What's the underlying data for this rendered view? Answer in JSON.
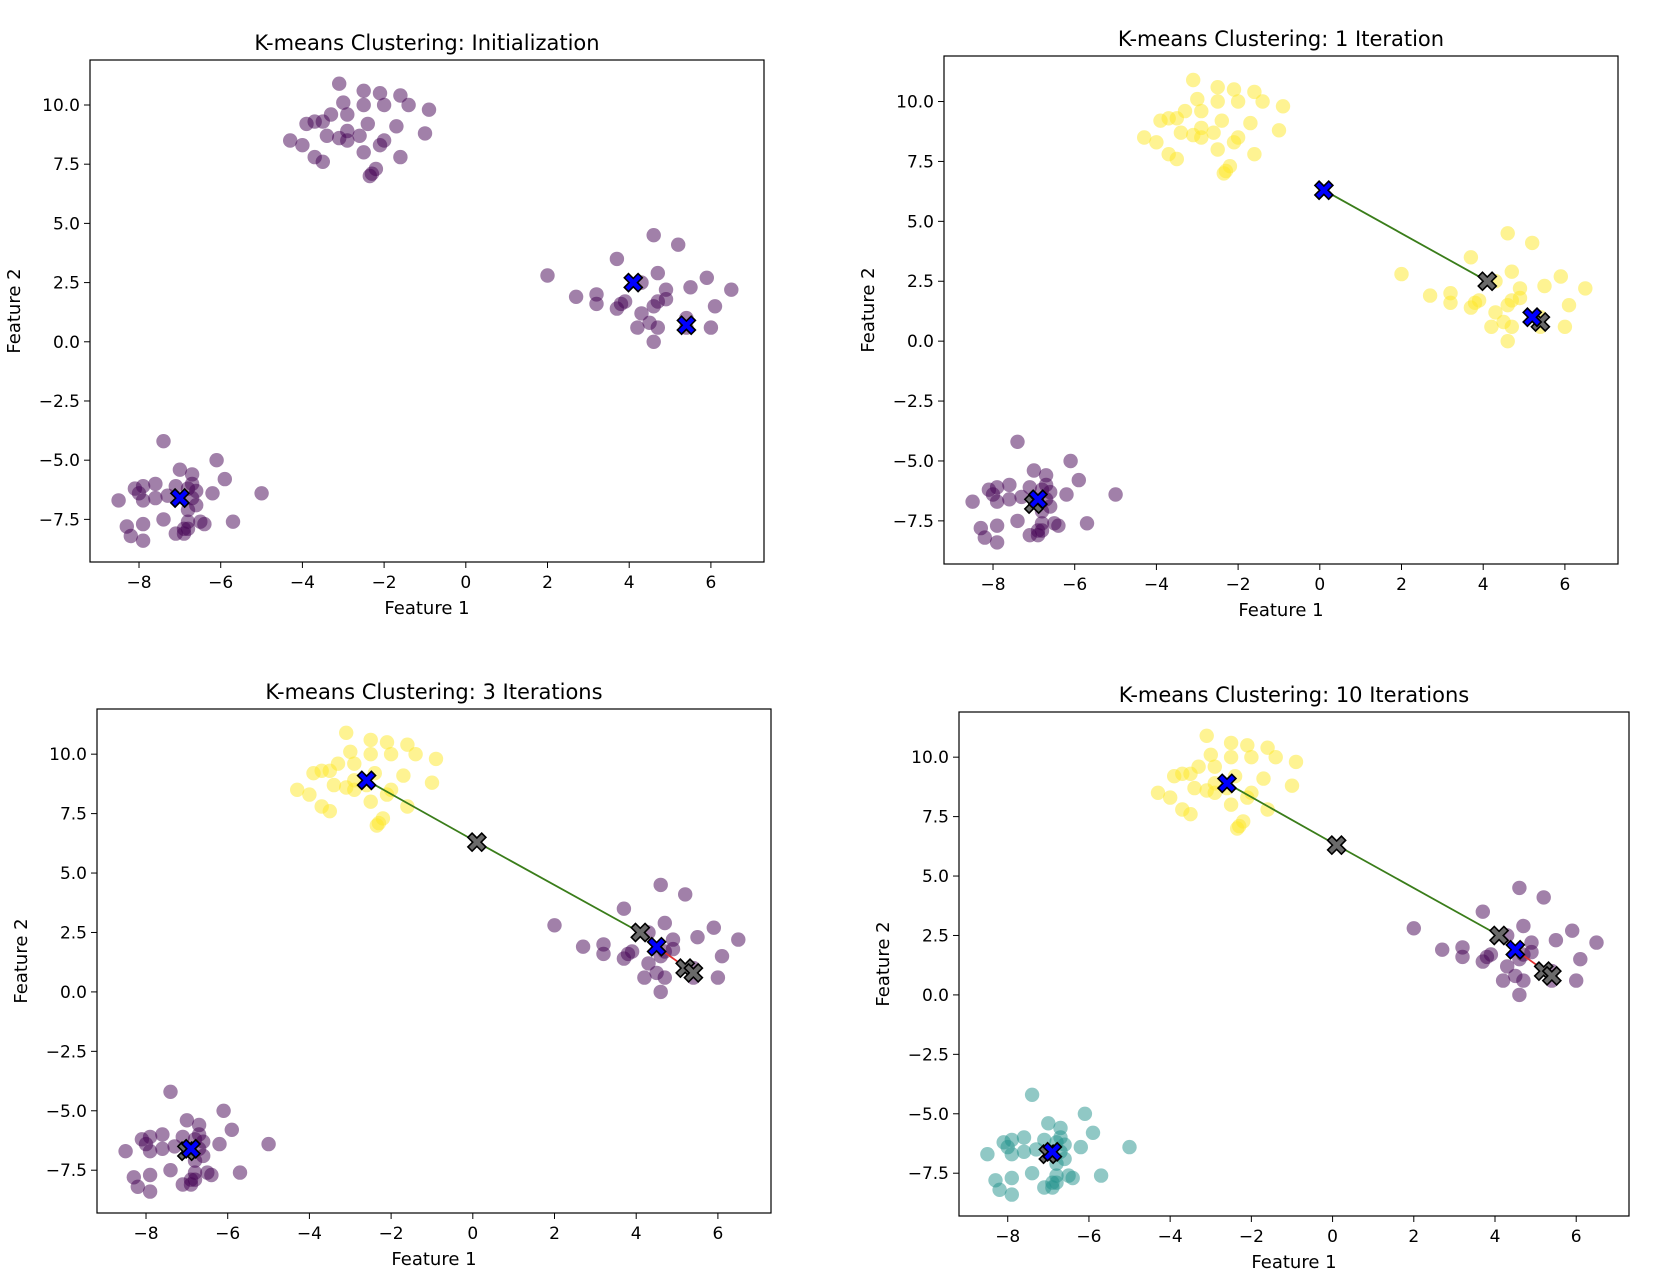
{
  "colors": {
    "purple": "#440154",
    "teal": "#21918c",
    "yellow": "#fde725",
    "centroid": "#0000ff",
    "old_centroid": "#6a6a6a",
    "path_green": "#3a7d1a",
    "path_red": "#e03030"
  },
  "chart_data": [
    {
      "type": "scatter",
      "title": "K-means Clustering: Initialization",
      "xlabel": "Feature 1",
      "ylabel": "Feature 2",
      "xlim": [
        -9.2,
        7.3
      ],
      "ylim": [
        -9.3,
        11.9
      ],
      "xticks": [
        -8,
        -6,
        -4,
        -2,
        0,
        2,
        4,
        6
      ],
      "yticks": [
        -7.5,
        -5.0,
        -2.5,
        0.0,
        2.5,
        5.0,
        7.5,
        10.0
      ],
      "xtick_labels": [
        "−8",
        "−6",
        "−4",
        "−2",
        "0",
        "2",
        "4",
        "6"
      ],
      "ytick_labels": [
        "−7.5",
        "−5.0",
        "−2.5",
        "0.0",
        "2.5",
        "5.0",
        "7.5",
        "10.0"
      ],
      "point_colors": {
        "A": "purple",
        "B": "purple",
        "C": "purple"
      },
      "centroids": [
        [
          -7.0,
          -6.6
        ],
        [
          4.1,
          2.5
        ],
        [
          5.4,
          0.7
        ]
      ],
      "previous_centroids": [],
      "paths": []
    },
    {
      "type": "scatter",
      "title": "K-means Clustering: 1 Iteration",
      "xlabel": "Feature 1",
      "ylabel": "Feature 2",
      "xlim": [
        -9.2,
        7.3
      ],
      "ylim": [
        -9.3,
        11.9
      ],
      "xticks": [
        -8,
        -6,
        -4,
        -2,
        0,
        2,
        4,
        6
      ],
      "yticks": [
        -7.5,
        -5.0,
        -2.5,
        0.0,
        2.5,
        5.0,
        7.5,
        10.0
      ],
      "xtick_labels": [
        "−8",
        "−6",
        "−4",
        "−2",
        "0",
        "2",
        "4",
        "6"
      ],
      "ytick_labels": [
        "−7.5",
        "−5.0",
        "−2.5",
        "0.0",
        "2.5",
        "5.0",
        "7.5",
        "10.0"
      ],
      "point_colors": {
        "A": "yellow",
        "B": "yellow",
        "C": "purple"
      },
      "centroids": [
        [
          -6.9,
          -6.6
        ],
        [
          0.1,
          6.3
        ],
        [
          5.2,
          1.0
        ]
      ],
      "previous_centroids": [
        [
          -7.0,
          -6.8
        ],
        [
          4.1,
          2.5
        ],
        [
          5.4,
          0.8
        ]
      ],
      "paths": [
        {
          "from": [
            0.1,
            6.3
          ],
          "to": [
            4.1,
            2.5
          ],
          "color": "path_green"
        },
        {
          "from": [
            5.2,
            1.0
          ],
          "to": [
            5.4,
            0.8
          ],
          "color": "path_red"
        }
      ]
    },
    {
      "type": "scatter",
      "title": "K-means Clustering: 3 Iterations",
      "xlabel": "Feature 1",
      "ylabel": "Feature 2",
      "xlim": [
        -9.2,
        7.3
      ],
      "ylim": [
        -9.3,
        11.9
      ],
      "xticks": [
        -8,
        -6,
        -4,
        -2,
        0,
        2,
        4,
        6
      ],
      "yticks": [
        -7.5,
        -5.0,
        -2.5,
        0.0,
        2.5,
        5.0,
        7.5,
        10.0
      ],
      "xtick_labels": [
        "−8",
        "−6",
        "−4",
        "−2",
        "0",
        "2",
        "4",
        "6"
      ],
      "ytick_labels": [
        "−7.5",
        "−5.0",
        "−2.5",
        "0.0",
        "2.5",
        "5.0",
        "7.5",
        "10.0"
      ],
      "point_colors": {
        "A": "yellow",
        "B": "purple",
        "C": "purple"
      },
      "centroids": [
        [
          -6.9,
          -6.6
        ],
        [
          -2.6,
          8.9
        ],
        [
          4.5,
          1.9
        ]
      ],
      "previous_centroids": [
        [
          -7.0,
          -6.7
        ],
        [
          0.1,
          6.3
        ],
        [
          4.1,
          2.5
        ],
        [
          5.2,
          1.0
        ],
        [
          5.4,
          0.8
        ]
      ],
      "paths": [
        {
          "from": [
            -2.6,
            8.9
          ],
          "to": [
            0.1,
            6.3
          ],
          "color": "path_green"
        },
        {
          "from": [
            0.1,
            6.3
          ],
          "to": [
            4.1,
            2.5
          ],
          "color": "path_green"
        },
        {
          "from": [
            4.5,
            1.9
          ],
          "to": [
            5.4,
            0.8
          ],
          "color": "path_red"
        }
      ]
    },
    {
      "type": "scatter",
      "title": "K-means Clustering: 10 Iterations",
      "xlabel": "Feature 1",
      "ylabel": "Feature 2",
      "xlim": [
        -9.2,
        7.3
      ],
      "ylim": [
        -9.3,
        11.9
      ],
      "xticks": [
        -8,
        -6,
        -4,
        -2,
        0,
        2,
        4,
        6
      ],
      "yticks": [
        -7.5,
        -5.0,
        -2.5,
        0.0,
        2.5,
        5.0,
        7.5,
        10.0
      ],
      "xtick_labels": [
        "−8",
        "−6",
        "−4",
        "−2",
        "0",
        "2",
        "4",
        "6"
      ],
      "ytick_labels": [
        "−7.5",
        "−5.0",
        "−2.5",
        "0.0",
        "2.5",
        "5.0",
        "7.5",
        "10.0"
      ],
      "point_colors": {
        "A": "yellow",
        "B": "purple",
        "C": "teal"
      },
      "centroids": [
        [
          -6.9,
          -6.6
        ],
        [
          -2.6,
          8.9
        ],
        [
          4.5,
          1.9
        ]
      ],
      "previous_centroids": [
        [
          -7.0,
          -6.7
        ],
        [
          0.1,
          6.3
        ],
        [
          4.1,
          2.5
        ],
        [
          5.2,
          1.0
        ],
        [
          5.4,
          0.8
        ]
      ],
      "paths": [
        {
          "from": [
            -2.6,
            8.9
          ],
          "to": [
            0.1,
            6.3
          ],
          "color": "path_green"
        },
        {
          "from": [
            0.1,
            6.3
          ],
          "to": [
            4.1,
            2.5
          ],
          "color": "path_green"
        },
        {
          "from": [
            4.5,
            1.9
          ],
          "to": [
            5.4,
            0.8
          ],
          "color": "path_red"
        }
      ]
    }
  ],
  "clusters": {
    "A": [
      [
        -3.1,
        10.9
      ],
      [
        -2.5,
        10.6
      ],
      [
        -2.1,
        10.5
      ],
      [
        -1.6,
        10.4
      ],
      [
        -3.0,
        10.1
      ],
      [
        -2.5,
        10.0
      ],
      [
        -2.0,
        10.0
      ],
      [
        -1.4,
        10.0
      ],
      [
        -0.9,
        9.8
      ],
      [
        -3.3,
        9.6
      ],
      [
        -2.9,
        9.6
      ],
      [
        -3.7,
        9.3
      ],
      [
        -3.5,
        9.3
      ],
      [
        -2.4,
        9.2
      ],
      [
        -3.9,
        9.2
      ],
      [
        -1.7,
        9.1
      ],
      [
        -2.9,
        8.9
      ],
      [
        -3.4,
        8.7
      ],
      [
        -3.1,
        8.6
      ],
      [
        -2.6,
        8.7
      ],
      [
        -2.9,
        8.5
      ],
      [
        -2.0,
        8.5
      ],
      [
        -1.0,
        8.8
      ],
      [
        -4.3,
        8.5
      ],
      [
        -4.0,
        8.3
      ],
      [
        -2.1,
        8.3
      ],
      [
        -1.6,
        7.8
      ],
      [
        -3.7,
        7.8
      ],
      [
        -2.5,
        8.0
      ],
      [
        -3.5,
        7.6
      ],
      [
        -2.2,
        7.3
      ],
      [
        -2.3,
        7.1
      ],
      [
        -2.35,
        7.0
      ]
    ],
    "B": [
      [
        4.6,
        4.5
      ],
      [
        5.2,
        4.1
      ],
      [
        3.7,
        3.5
      ],
      [
        2.0,
        2.8
      ],
      [
        5.9,
        2.7
      ],
      [
        4.7,
        2.9
      ],
      [
        4.3,
        2.5
      ],
      [
        5.5,
        2.3
      ],
      [
        6.5,
        2.2
      ],
      [
        3.2,
        2.0
      ],
      [
        4.9,
        2.2
      ],
      [
        2.7,
        1.9
      ],
      [
        4.7,
        1.7
      ],
      [
        4.9,
        1.8
      ],
      [
        3.9,
        1.7
      ],
      [
        3.8,
        1.6
      ],
      [
        3.2,
        1.6
      ],
      [
        4.6,
        1.5
      ],
      [
        3.7,
        1.4
      ],
      [
        6.1,
        1.5
      ],
      [
        4.3,
        1.2
      ],
      [
        4.5,
        0.8
      ],
      [
        5.4,
        1.0
      ],
      [
        4.2,
        0.6
      ],
      [
        4.7,
        0.6
      ],
      [
        5.4,
        0.6
      ],
      [
        6.0,
        0.6
      ],
      [
        4.6,
        0.0
      ]
    ],
    "C": [
      [
        -7.4,
        -4.2
      ],
      [
        -6.1,
        -5.0
      ],
      [
        -7.0,
        -5.4
      ],
      [
        -6.7,
        -5.6
      ],
      [
        -5.9,
        -5.8
      ],
      [
        -7.6,
        -6.0
      ],
      [
        -7.9,
        -6.1
      ],
      [
        -6.7,
        -6.0
      ],
      [
        -7.1,
        -6.1
      ],
      [
        -8.1,
        -6.2
      ],
      [
        -6.8,
        -6.2
      ],
      [
        -6.6,
        -6.3
      ],
      [
        -8.0,
        -6.4
      ],
      [
        -7.3,
        -6.5
      ],
      [
        -6.2,
        -6.4
      ],
      [
        -5.0,
        -6.4
      ],
      [
        -7.6,
        -6.6
      ],
      [
        -7.9,
        -6.7
      ],
      [
        -6.7,
        -6.6
      ],
      [
        -8.5,
        -6.7
      ],
      [
        -6.6,
        -6.9
      ],
      [
        -6.8,
        -7.1
      ],
      [
        -5.7,
        -7.6
      ],
      [
        -7.4,
        -7.5
      ],
      [
        -6.5,
        -7.6
      ],
      [
        -6.8,
        -7.6
      ],
      [
        -7.9,
        -7.7
      ],
      [
        -6.8,
        -7.9
      ],
      [
        -6.4,
        -7.7
      ],
      [
        -8.3,
        -7.8
      ],
      [
        -8.2,
        -8.2
      ],
      [
        -7.9,
        -8.4
      ],
      [
        -6.9,
        -7.9
      ],
      [
        -7.1,
        -8.1
      ],
      [
        -6.9,
        -8.1
      ]
    ]
  }
}
